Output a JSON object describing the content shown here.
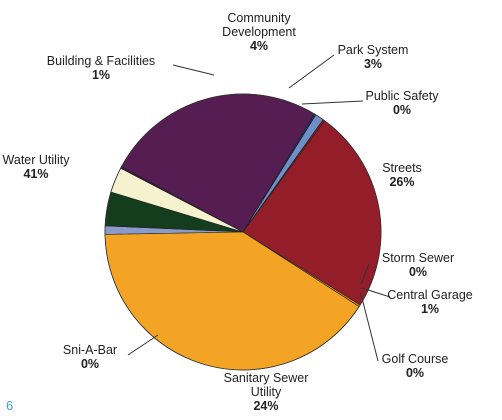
{
  "chart_data": {
    "type": "pie",
    "title": "",
    "slices": [
      {
        "name": "Building & Facilities",
        "pct": 1,
        "color": "#8a9bc9"
      },
      {
        "name": "Community Development",
        "pct": 4,
        "color": "#143d1e"
      },
      {
        "name": "Park System",
        "pct": 3,
        "color": "#f6f1cf"
      },
      {
        "name": "Public Safety",
        "pct": 0,
        "color": "#3b1a48"
      },
      {
        "name": "Streets",
        "pct": 26,
        "color": "#561d52"
      },
      {
        "name": "Storm Sewer",
        "pct": 0,
        "color": "#1d2f6e"
      },
      {
        "name": "Central Garage",
        "pct": 1,
        "color": "#6f8fc8"
      },
      {
        "name": "Golf Course",
        "pct": 0,
        "color": "#8a1c1c"
      },
      {
        "name": "Sanitary Sewer Utility",
        "pct": 24,
        "color": "#931d28"
      },
      {
        "name": "Sni-A-Bar",
        "pct": 0,
        "color": "#d98a2a"
      },
      {
        "name": "Water Utility",
        "pct": 41,
        "color": "#f4a424"
      }
    ],
    "labels": [
      {
        "name": "Building & Facilities",
        "lines": [
          "Building & Facilities"
        ],
        "pct_text": "1%"
      },
      {
        "name": "Community Development",
        "lines": [
          "Community",
          "Development"
        ],
        "pct_text": "4%"
      },
      {
        "name": "Park System",
        "lines": [
          "Park System"
        ],
        "pct_text": "3%"
      },
      {
        "name": "Public Safety",
        "lines": [
          "Public Safety"
        ],
        "pct_text": "0%"
      },
      {
        "name": "Streets",
        "lines": [
          "Streets"
        ],
        "pct_text": "26%"
      },
      {
        "name": "Storm Sewer",
        "lines": [
          "Storm Sewer"
        ],
        "pct_text": "0%"
      },
      {
        "name": "Central Garage",
        "lines": [
          "Central Garage"
        ],
        "pct_text": "1%"
      },
      {
        "name": "Golf Course",
        "lines": [
          "Golf Course"
        ],
        "pct_text": "0%"
      },
      {
        "name": "Sanitary Sewer Utility",
        "lines": [
          "Sanitary Sewer",
          "Utility"
        ],
        "pct_text": "24%"
      },
      {
        "name": "Sni-A-Bar",
        "lines": [
          "Sni-A-Bar"
        ],
        "pct_text": "0%"
      },
      {
        "name": "Water Utility",
        "lines": [
          "Water Utility"
        ],
        "pct_text": "41%"
      }
    ]
  },
  "page_number": "6"
}
